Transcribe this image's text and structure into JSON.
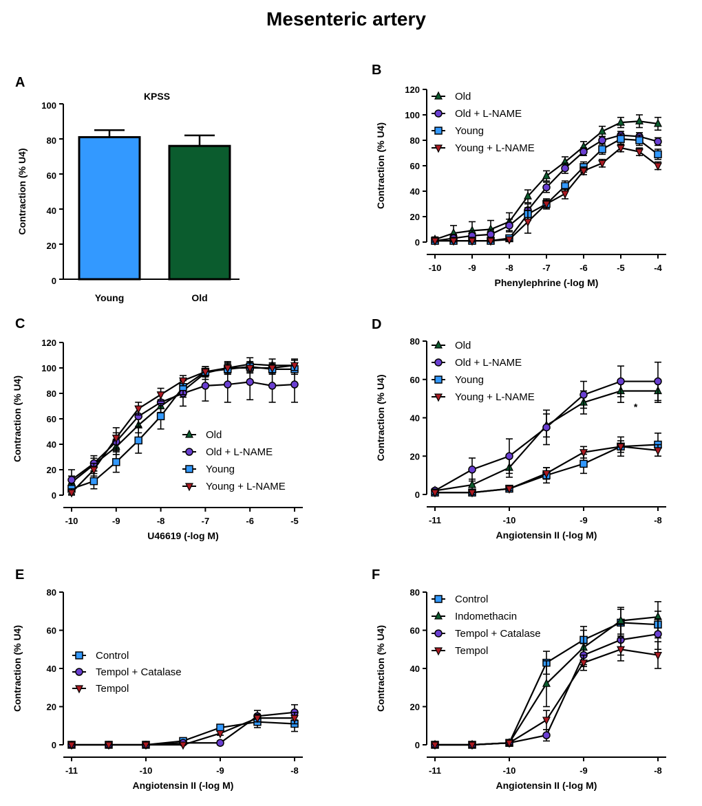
{
  "figure": {
    "title": "Mesenteric artery"
  },
  "colors": {
    "young": "#3399ff",
    "old": "#0b5c2e",
    "violet": "#6a3fd1",
    "red": "#aa1a22",
    "black": "#000000"
  },
  "chart_data": [
    {
      "id": "A",
      "type": "bar",
      "letter": "A",
      "title": "KPSS",
      "xlabel": "",
      "ylabel": "Contraction (% U4)",
      "ylim": [
        0,
        100
      ],
      "yticks": [
        0,
        20,
        40,
        60,
        80,
        100
      ],
      "yticklabels": [
        "0",
        "20",
        "40",
        "60",
        "80",
        "100"
      ],
      "categories": [
        "Young",
        "Old"
      ],
      "values": [
        81,
        76
      ],
      "errors": [
        4,
        6
      ],
      "bar_colors": [
        "#3399ff",
        "#0b5c2e"
      ]
    },
    {
      "id": "B",
      "type": "line",
      "letter": "B",
      "xlabel": "Phenylephrine (-log M)",
      "ylabel": "Contraction (% U4)",
      "xlim": [
        -10,
        -4
      ],
      "ylim": [
        0,
        120
      ],
      "xticks": [
        -10,
        -9,
        -8,
        -7,
        -6,
        -5,
        -4
      ],
      "xticklabels": [
        "-10",
        "-9",
        "-8",
        "-7",
        "-6",
        "-5",
        "-4"
      ],
      "yticks": [
        0,
        20,
        40,
        60,
        80,
        100,
        120
      ],
      "yticklabels": [
        "0",
        "20",
        "40",
        "60",
        "80",
        "100",
        "120"
      ],
      "legend_position": "top-left",
      "x": [
        -10,
        -9.5,
        -9,
        -8.5,
        -8,
        -7.5,
        -7,
        -6.5,
        -6,
        -5.5,
        -5,
        -4.5,
        -4
      ],
      "series": [
        {
          "name": "Old",
          "marker": "triangle-up",
          "color": "#0b5c2e",
          "values": [
            2,
            7,
            9,
            10,
            16,
            36,
            52,
            63,
            75,
            87,
            94,
            95,
            93
          ],
          "errors": [
            2,
            6,
            7,
            7,
            7,
            5,
            4,
            4,
            4,
            4,
            4,
            5,
            5
          ]
        },
        {
          "name": "Old + L-NAME",
          "marker": "circle",
          "color": "#6a3fd1",
          "values": [
            1,
            3,
            5,
            6,
            13,
            25,
            43,
            58,
            71,
            80,
            84,
            83,
            79
          ],
          "errors": [
            1,
            3,
            4,
            4,
            5,
            5,
            4,
            4,
            3,
            3,
            3,
            3,
            3
          ]
        },
        {
          "name": "Young",
          "marker": "square",
          "color": "#3399ff",
          "values": [
            1,
            1,
            1,
            1,
            3,
            22,
            30,
            44,
            59,
            73,
            81,
            80,
            69
          ],
          "errors": [
            1,
            1,
            1,
            1,
            2,
            5,
            4,
            4,
            4,
            4,
            4,
            4,
            4
          ]
        },
        {
          "name": "Young + L-NAME",
          "marker": "triangle-down",
          "color": "#aa1a22",
          "values": [
            1,
            1,
            1,
            1,
            2,
            16,
            30,
            38,
            56,
            62,
            74,
            71,
            60
          ],
          "errors": [
            1,
            1,
            1,
            1,
            1,
            9,
            3,
            4,
            3,
            3,
            3,
            3,
            3
          ]
        }
      ]
    },
    {
      "id": "C",
      "type": "line",
      "letter": "C",
      "xlabel": "U46619 (-log M)",
      "ylabel": "Contraction (% U4)",
      "xlim": [
        -10,
        -5
      ],
      "ylim": [
        0,
        120
      ],
      "xticks": [
        -10,
        -9,
        -8,
        -7,
        -6,
        -5
      ],
      "xticklabels": [
        "-10",
        "-9",
        "-8",
        "-7",
        "-6",
        "-5"
      ],
      "yticks": [
        0,
        20,
        40,
        60,
        80,
        100,
        120
      ],
      "yticklabels": [
        "0",
        "20",
        "40",
        "60",
        "80",
        "100",
        "120"
      ],
      "legend_position": "bottom-right",
      "x": [
        -10,
        -9.5,
        -9,
        -8.5,
        -8,
        -7.5,
        -7,
        -6.5,
        -6,
        -5.5,
        -5
      ],
      "series": [
        {
          "name": "Old",
          "marker": "triangle-up",
          "color": "#0b5c2e",
          "values": [
            10,
            24,
            38,
            55,
            70,
            82,
            96,
            100,
            103,
            102,
            102
          ],
          "errors": [
            5,
            5,
            6,
            6,
            5,
            5,
            5,
            5,
            5,
            5,
            5
          ]
        },
        {
          "name": "Old + L-NAME",
          "marker": "circle",
          "color": "#6a3fd1",
          "values": [
            12,
            25,
            42,
            62,
            73,
            80,
            86,
            87,
            89,
            86,
            87
          ],
          "errors": [
            8,
            6,
            7,
            8,
            8,
            10,
            12,
            14,
            14,
            13,
            14
          ]
        },
        {
          "name": "Young",
          "marker": "square",
          "color": "#3399ff",
          "values": [
            5,
            11,
            26,
            43,
            62,
            85,
            97,
            99,
            101,
            99,
            99
          ],
          "errors": [
            4,
            6,
            8,
            10,
            10,
            6,
            4,
            4,
            4,
            4,
            4
          ]
        },
        {
          "name": "Young + L-NAME",
          "marker": "triangle-down",
          "color": "#aa1a22",
          "values": [
            2,
            20,
            45,
            68,
            79,
            90,
            97,
            100,
            100,
            100,
            102
          ],
          "errors": [
            3,
            5,
            8,
            5,
            5,
            4,
            4,
            4,
            4,
            4,
            4
          ]
        }
      ]
    },
    {
      "id": "D",
      "type": "line",
      "letter": "D",
      "xlabel": "Angiotensin II (-log M)",
      "ylabel": "Contraction (% U4)",
      "xlim": [
        -11,
        -8
      ],
      "ylim": [
        0,
        80
      ],
      "xticks": [
        -11,
        -10,
        -9,
        -8
      ],
      "xticklabels": [
        "-11",
        "-10",
        "-9",
        "-8"
      ],
      "yticks": [
        0,
        20,
        40,
        60,
        80
      ],
      "yticklabels": [
        "0",
        "20",
        "40",
        "60",
        "80"
      ],
      "legend_position": "top-left",
      "annotations": [
        {
          "text": "*",
          "x": -8.3,
          "y": 44
        }
      ],
      "x": [
        -11,
        -10.5,
        -10,
        -9.5,
        -9,
        -8.5,
        -8
      ],
      "series": [
        {
          "name": "Old",
          "marker": "triangle-up",
          "color": "#0b5c2e",
          "values": [
            2,
            5,
            14,
            36,
            48,
            54,
            54
          ],
          "errors": [
            1,
            3,
            5,
            6,
            6,
            6,
            6
          ]
        },
        {
          "name": "Old + L-NAME",
          "marker": "circle",
          "color": "#6a3fd1",
          "values": [
            2,
            13,
            20,
            35,
            52,
            59,
            59
          ],
          "errors": [
            1,
            6,
            9,
            9,
            7,
            8,
            10
          ]
        },
        {
          "name": "Young",
          "marker": "square",
          "color": "#3399ff",
          "values": [
            1,
            1,
            3,
            10,
            16,
            25,
            26
          ],
          "errors": [
            1,
            1,
            1,
            4,
            5,
            5,
            6
          ]
        },
        {
          "name": "Young + L-NAME",
          "marker": "triangle-down",
          "color": "#aa1a22",
          "values": [
            1,
            1,
            3,
            11,
            22,
            25,
            23
          ],
          "errors": [
            1,
            1,
            1,
            3,
            3,
            3,
            3
          ]
        }
      ]
    },
    {
      "id": "E",
      "type": "line",
      "letter": "E",
      "xlabel": "Angiotensin II (-log M)",
      "ylabel": "Contraction (% U4)",
      "xlim": [
        -11,
        -8
      ],
      "ylim": [
        0,
        80
      ],
      "xticks": [
        -11,
        -10,
        -9,
        -8
      ],
      "xticklabels": [
        "-11",
        "-10",
        "-9",
        "-8"
      ],
      "yticks": [
        0,
        20,
        40,
        60,
        80
      ],
      "yticklabels": [
        "0",
        "20",
        "40",
        "60",
        "80"
      ],
      "legend_position": "middle-left",
      "x": [
        -11,
        -10.5,
        -10,
        -9.5,
        -9,
        -8.5,
        -8
      ],
      "series": [
        {
          "name": "Control",
          "marker": "square",
          "color": "#3399ff",
          "values": [
            0,
            0,
            0,
            2,
            9,
            12,
            11
          ],
          "errors": [
            0,
            0,
            0,
            1,
            1,
            3,
            4
          ]
        },
        {
          "name": "Tempol + Catalase",
          "marker": "circle",
          "color": "#6a3fd1",
          "values": [
            0,
            0,
            0,
            1,
            1,
            15,
            17
          ],
          "errors": [
            0,
            0,
            0,
            1,
            1,
            3,
            4
          ]
        },
        {
          "name": "Tempol",
          "marker": "triangle-down",
          "color": "#aa1a22",
          "values": [
            0,
            0,
            0,
            0,
            6,
            14,
            14
          ],
          "errors": [
            0,
            0,
            0,
            1,
            1,
            2,
            3
          ]
        }
      ]
    },
    {
      "id": "F",
      "type": "line",
      "letter": "F",
      "xlabel": "Angiotensin II (-log M)",
      "ylabel": "Contraction (% U4)",
      "xlim": [
        -11,
        -8
      ],
      "ylim": [
        0,
        80
      ],
      "xticks": [
        -11,
        -10,
        -9,
        -8
      ],
      "xticklabels": [
        "-11",
        "-10",
        "-9",
        "-8"
      ],
      "yticks": [
        0,
        20,
        40,
        60,
        80
      ],
      "yticklabels": [
        "0",
        "20",
        "40",
        "60",
        "80"
      ],
      "legend_position": "top-left",
      "x": [
        -11,
        -10.5,
        -10,
        -9.5,
        -9,
        -8.5,
        -8
      ],
      "series": [
        {
          "name": "Control",
          "marker": "square",
          "color": "#3399ff",
          "values": [
            0,
            0,
            1,
            43,
            55,
            64,
            63
          ],
          "errors": [
            0,
            0,
            1,
            6,
            7,
            7,
            7
          ]
        },
        {
          "name": "Indomethacin",
          "marker": "triangle-up",
          "color": "#0b5c2e",
          "values": [
            0,
            0,
            1,
            32,
            51,
            65,
            67
          ],
          "errors": [
            0,
            0,
            1,
            12,
            9,
            7,
            8
          ]
        },
        {
          "name": "Tempol + Catalase",
          "marker": "circle",
          "color": "#6a3fd1",
          "values": [
            0,
            0,
            1,
            5,
            47,
            55,
            58
          ],
          "errors": [
            0,
            0,
            1,
            3,
            6,
            8,
            8
          ]
        },
        {
          "name": "Tempol",
          "marker": "triangle-down",
          "color": "#aa1a22",
          "values": [
            0,
            0,
            1,
            13,
            43,
            50,
            47
          ],
          "errors": [
            0,
            0,
            1,
            5,
            4,
            6,
            7
          ]
        }
      ]
    }
  ]
}
